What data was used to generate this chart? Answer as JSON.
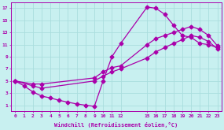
{
  "xlabel": "Windchill (Refroidissement éolien,°C)",
  "bg_color": "#c8f0f0",
  "grid_color": "#aadddd",
  "line_color": "#aa00aa",
  "xlim": [
    -0.5,
    23.5
  ],
  "ylim": [
    0,
    18
  ],
  "xticks": [
    0,
    1,
    2,
    3,
    4,
    5,
    6,
    7,
    8,
    9,
    10,
    11,
    12,
    15,
    16,
    17,
    18,
    19,
    20,
    21,
    22,
    23
  ],
  "yticks": [
    1,
    3,
    5,
    7,
    9,
    11,
    13,
    15,
    17
  ],
  "line1_x": [
    0,
    1,
    2,
    3,
    4,
    5,
    6,
    7,
    8,
    9,
    10,
    11,
    12,
    15,
    16,
    17,
    18,
    19,
    20,
    21,
    22,
    23
  ],
  "line1_y": [
    5,
    4.2,
    3.2,
    2.5,
    2.2,
    1.8,
    1.5,
    1.2,
    1.0,
    0.8,
    5.0,
    9.0,
    11.2,
    17.2,
    17.0,
    16.0,
    14.2,
    12.5,
    12.2,
    11.2,
    11.0,
    10.5
  ],
  "line2_x": [
    0,
    2,
    3,
    9,
    10,
    11,
    12,
    15,
    16,
    17,
    18,
    19,
    20,
    21,
    22,
    23
  ],
  "line2_y": [
    5,
    4.5,
    4.5,
    5.5,
    6.5,
    7.2,
    7.5,
    11.0,
    12.0,
    12.5,
    13.0,
    13.5,
    14.0,
    13.5,
    12.5,
    10.8
  ],
  "line3_x": [
    0,
    2,
    3,
    9,
    10,
    11,
    12,
    15,
    16,
    17,
    18,
    19,
    20,
    21,
    22,
    23
  ],
  "line3_y": [
    5,
    4.2,
    3.8,
    5.0,
    5.8,
    6.5,
    7.0,
    8.8,
    9.8,
    10.5,
    11.2,
    11.8,
    12.5,
    12.2,
    11.5,
    10.3
  ]
}
